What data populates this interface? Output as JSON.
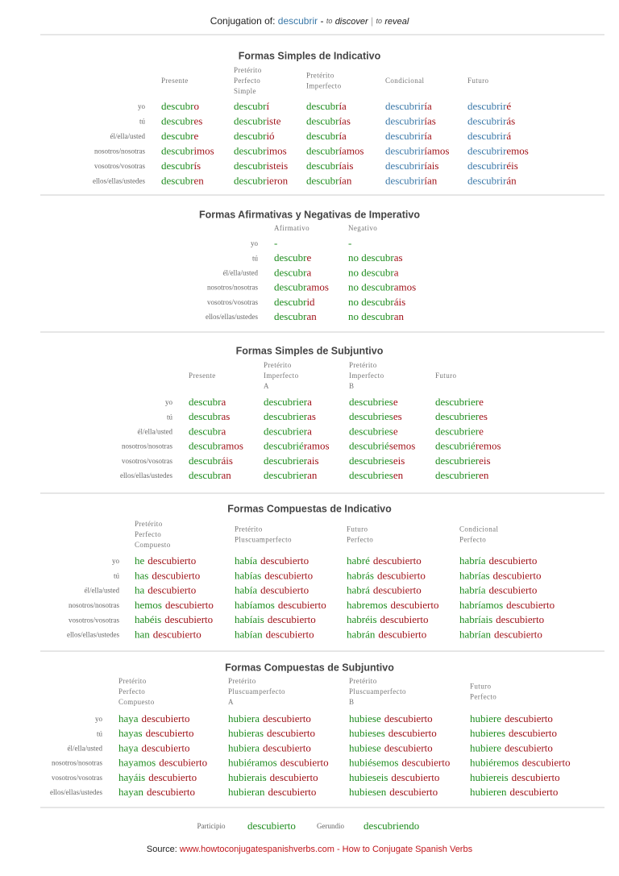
{
  "header": {
    "label": "Conjugation of:",
    "verb": "descubrir",
    "dash": "-",
    "to1": "to",
    "meaning1": "discover",
    "sep": "|",
    "to2": "to",
    "meaning2": "reveal"
  },
  "sections": [
    {
      "title": "Formas Simples de Indicativo",
      "columns": [
        [
          "Presente"
        ],
        [
          "Pretérito",
          "Perfecto",
          "Simple"
        ],
        [
          "Pretérito",
          "Imperfecto"
        ],
        [
          "Condicional"
        ],
        [
          "Futuro"
        ]
      ],
      "pronouns": [
        "yo",
        "tú",
        "él/ella/usted",
        "nosotros/nosotras",
        "vosotros/vosotras",
        "ellos/ellas/ustedes"
      ],
      "rows": [
        [
          [
            "descubr",
            "o"
          ],
          [
            "descubr",
            "í"
          ],
          [
            "descubr",
            "ía"
          ],
          [
            "descubrir",
            "ía"
          ],
          [
            "descubrir",
            "é"
          ]
        ],
        [
          [
            "descubr",
            "es"
          ],
          [
            "descubr",
            "iste"
          ],
          [
            "descubr",
            "ías"
          ],
          [
            "descubrir",
            "ías"
          ],
          [
            "descubrir",
            "ás"
          ]
        ],
        [
          [
            "descubr",
            "e"
          ],
          [
            "descubr",
            "ió"
          ],
          [
            "descubr",
            "ía"
          ],
          [
            "descubrir",
            "ía"
          ],
          [
            "descubrir",
            "á"
          ]
        ],
        [
          [
            "descubr",
            "imos"
          ],
          [
            "descubr",
            "imos"
          ],
          [
            "descubr",
            "íamos"
          ],
          [
            "descubrir",
            "íamos"
          ],
          [
            "descubrir",
            "emos"
          ]
        ],
        [
          [
            "descubr",
            "ís"
          ],
          [
            "descubr",
            "isteis"
          ],
          [
            "descubr",
            "íais"
          ],
          [
            "descubrir",
            "íais"
          ],
          [
            "descubrir",
            "éis"
          ]
        ],
        [
          [
            "descubr",
            "en"
          ],
          [
            "descubr",
            "ieron"
          ],
          [
            "descubr",
            "ían"
          ],
          [
            "descubrir",
            "ían"
          ],
          [
            "descubrir",
            "án"
          ]
        ]
      ]
    },
    {
      "title": "Formas Afirmativas y Negativas de Imperativo",
      "columns": [
        [
          "Afirmativo"
        ],
        [
          "Negativo"
        ]
      ],
      "pronouns": [
        "yo",
        "tú",
        "él/ella/usted",
        "nosotros/nosotras",
        "vosotros/vosotras",
        "ellos/ellas/ustedes"
      ],
      "rows": [
        [
          [
            "-"
          ],
          [
            "-"
          ]
        ],
        [
          [
            "descubr",
            "e"
          ],
          [
            "no descubr",
            "as"
          ]
        ],
        [
          [
            "descubr",
            "a"
          ],
          [
            "no descubr",
            "a"
          ]
        ],
        [
          [
            "descubr",
            "amos"
          ],
          [
            "no descubr",
            "amos"
          ]
        ],
        [
          [
            "descubr",
            "id"
          ],
          [
            "no descubr",
            "áis"
          ]
        ],
        [
          [
            "descubr",
            "an"
          ],
          [
            "no descubr",
            "an"
          ]
        ]
      ]
    },
    {
      "title": "Formas Simples de Subjuntivo",
      "columns": [
        [
          "Presente"
        ],
        [
          "Pretérito",
          "Imperfecto",
          "A"
        ],
        [
          "Pretérito",
          "Imperfecto",
          "B"
        ],
        [
          "Futuro"
        ]
      ],
      "pronouns": [
        "yo",
        "tú",
        "él/ella/usted",
        "nosotros/nosotras",
        "vosotros/vosotras",
        "ellos/ellas/ustedes"
      ],
      "rows": [
        [
          [
            "descubr",
            "a"
          ],
          [
            "descubrier",
            "a"
          ],
          [
            "descubries",
            "e"
          ],
          [
            "descubrier",
            "e"
          ]
        ],
        [
          [
            "descubr",
            "as"
          ],
          [
            "descubrier",
            "as"
          ],
          [
            "descubries",
            "es"
          ],
          [
            "descubrier",
            "es"
          ]
        ],
        [
          [
            "descubr",
            "a"
          ],
          [
            "descubrier",
            "a"
          ],
          [
            "descubries",
            "e"
          ],
          [
            "descubrier",
            "e"
          ]
        ],
        [
          [
            "descubr",
            "amos"
          ],
          [
            "descubrié",
            "ramos"
          ],
          [
            "descubrié",
            "semos"
          ],
          [
            "descubrié",
            "remos"
          ]
        ],
        [
          [
            "descubr",
            "áis"
          ],
          [
            "descubrier",
            "ais"
          ],
          [
            "descubries",
            "eis"
          ],
          [
            "descubrier",
            "eis"
          ]
        ],
        [
          [
            "descubr",
            "an"
          ],
          [
            "descubrier",
            "an"
          ],
          [
            "descubries",
            "en"
          ],
          [
            "descubrier",
            "en"
          ]
        ]
      ]
    },
    {
      "title": "Formas Compuestas de Indicativo",
      "columns": [
        [
          "Pretérito",
          "Perfecto",
          "Compuesto"
        ],
        [
          "Pretérito",
          "Pluscuamperfecto"
        ],
        [
          "Futuro",
          "Perfecto"
        ],
        [
          "Condicional",
          "Perfecto"
        ]
      ],
      "pronouns": [
        "yo",
        "tú",
        "él/ella/usted",
        "nosotros/nosotras",
        "vosotros/vosotras",
        "ellos/ellas/ustedes"
      ],
      "rows": [
        [
          [
            "he",
            "descubierto"
          ],
          [
            "había",
            "descubierto"
          ],
          [
            "habré",
            "descubierto"
          ],
          [
            "habría",
            "descubierto"
          ]
        ],
        [
          [
            "has",
            "descubierto"
          ],
          [
            "habías",
            "descubierto"
          ],
          [
            "habrás",
            "descubierto"
          ],
          [
            "habrías",
            "descubierto"
          ]
        ],
        [
          [
            "ha",
            "descubierto"
          ],
          [
            "había",
            "descubierto"
          ],
          [
            "habrá",
            "descubierto"
          ],
          [
            "habría",
            "descubierto"
          ]
        ],
        [
          [
            "hemos",
            "descubierto"
          ],
          [
            "habíamos",
            "descubierto"
          ],
          [
            "habremos",
            "descubierto"
          ],
          [
            "habríamos",
            "descubierto"
          ]
        ],
        [
          [
            "habéis",
            "descubierto"
          ],
          [
            "habíais",
            "descubierto"
          ],
          [
            "habréis",
            "descubierto"
          ],
          [
            "habríais",
            "descubierto"
          ]
        ],
        [
          [
            "han",
            "descubierto"
          ],
          [
            "habían",
            "descubierto"
          ],
          [
            "habrán",
            "descubierto"
          ],
          [
            "habrían",
            "descubierto"
          ]
        ]
      ]
    },
    {
      "title": "Formas Compuestas de Subjuntivo",
      "columns": [
        [
          "Pretérito",
          "Perfecto",
          "Compuesto"
        ],
        [
          "Pretérito",
          "Pluscuamperfecto",
          "A"
        ],
        [
          "Pretérito",
          "Pluscuamperfecto",
          "B"
        ],
        [
          "Futuro",
          "Perfecto"
        ]
      ],
      "pronouns": [
        "yo",
        "tú",
        "él/ella/usted",
        "nosotros/nosotras",
        "vosotros/vosotras",
        "ellos/ellas/ustedes"
      ],
      "rows": [
        [
          [
            "haya",
            "descubierto"
          ],
          [
            "hubiera",
            "descubierto"
          ],
          [
            "hubiese",
            "descubierto"
          ],
          [
            "hubiere",
            "descubierto"
          ]
        ],
        [
          [
            "hayas",
            "descubierto"
          ],
          [
            "hubieras",
            "descubierto"
          ],
          [
            "hubieses",
            "descubierto"
          ],
          [
            "hubieres",
            "descubierto"
          ]
        ],
        [
          [
            "haya",
            "descubierto"
          ],
          [
            "hubiera",
            "descubierto"
          ],
          [
            "hubiese",
            "descubierto"
          ],
          [
            "hubiere",
            "descubierto"
          ]
        ],
        [
          [
            "hayamos",
            "descubierto"
          ],
          [
            "hubiéramos",
            "descubierto"
          ],
          [
            "hubiésemos",
            "descubierto"
          ],
          [
            "hubiéremos",
            "descubierto"
          ]
        ],
        [
          [
            "hayáis",
            "descubierto"
          ],
          [
            "hubierais",
            "descubierto"
          ],
          [
            "hubieseis",
            "descubierto"
          ],
          [
            "hubiereis",
            "descubierto"
          ]
        ],
        [
          [
            "hayan",
            "descubierto"
          ],
          [
            "hubieran",
            "descubierto"
          ],
          [
            "hubiesen",
            "descubierto"
          ],
          [
            "hubieren",
            "descubierto"
          ]
        ]
      ]
    }
  ],
  "participle": {
    "label": "Participio",
    "value": "descubierto"
  },
  "gerund": {
    "label": "Gerundio",
    "value": "descubriendo"
  },
  "source": {
    "label": "Source:",
    "url": "www.howtoconjugatespanishverbs.com",
    "rest": "- How to Conjugate Spanish Verbs"
  }
}
